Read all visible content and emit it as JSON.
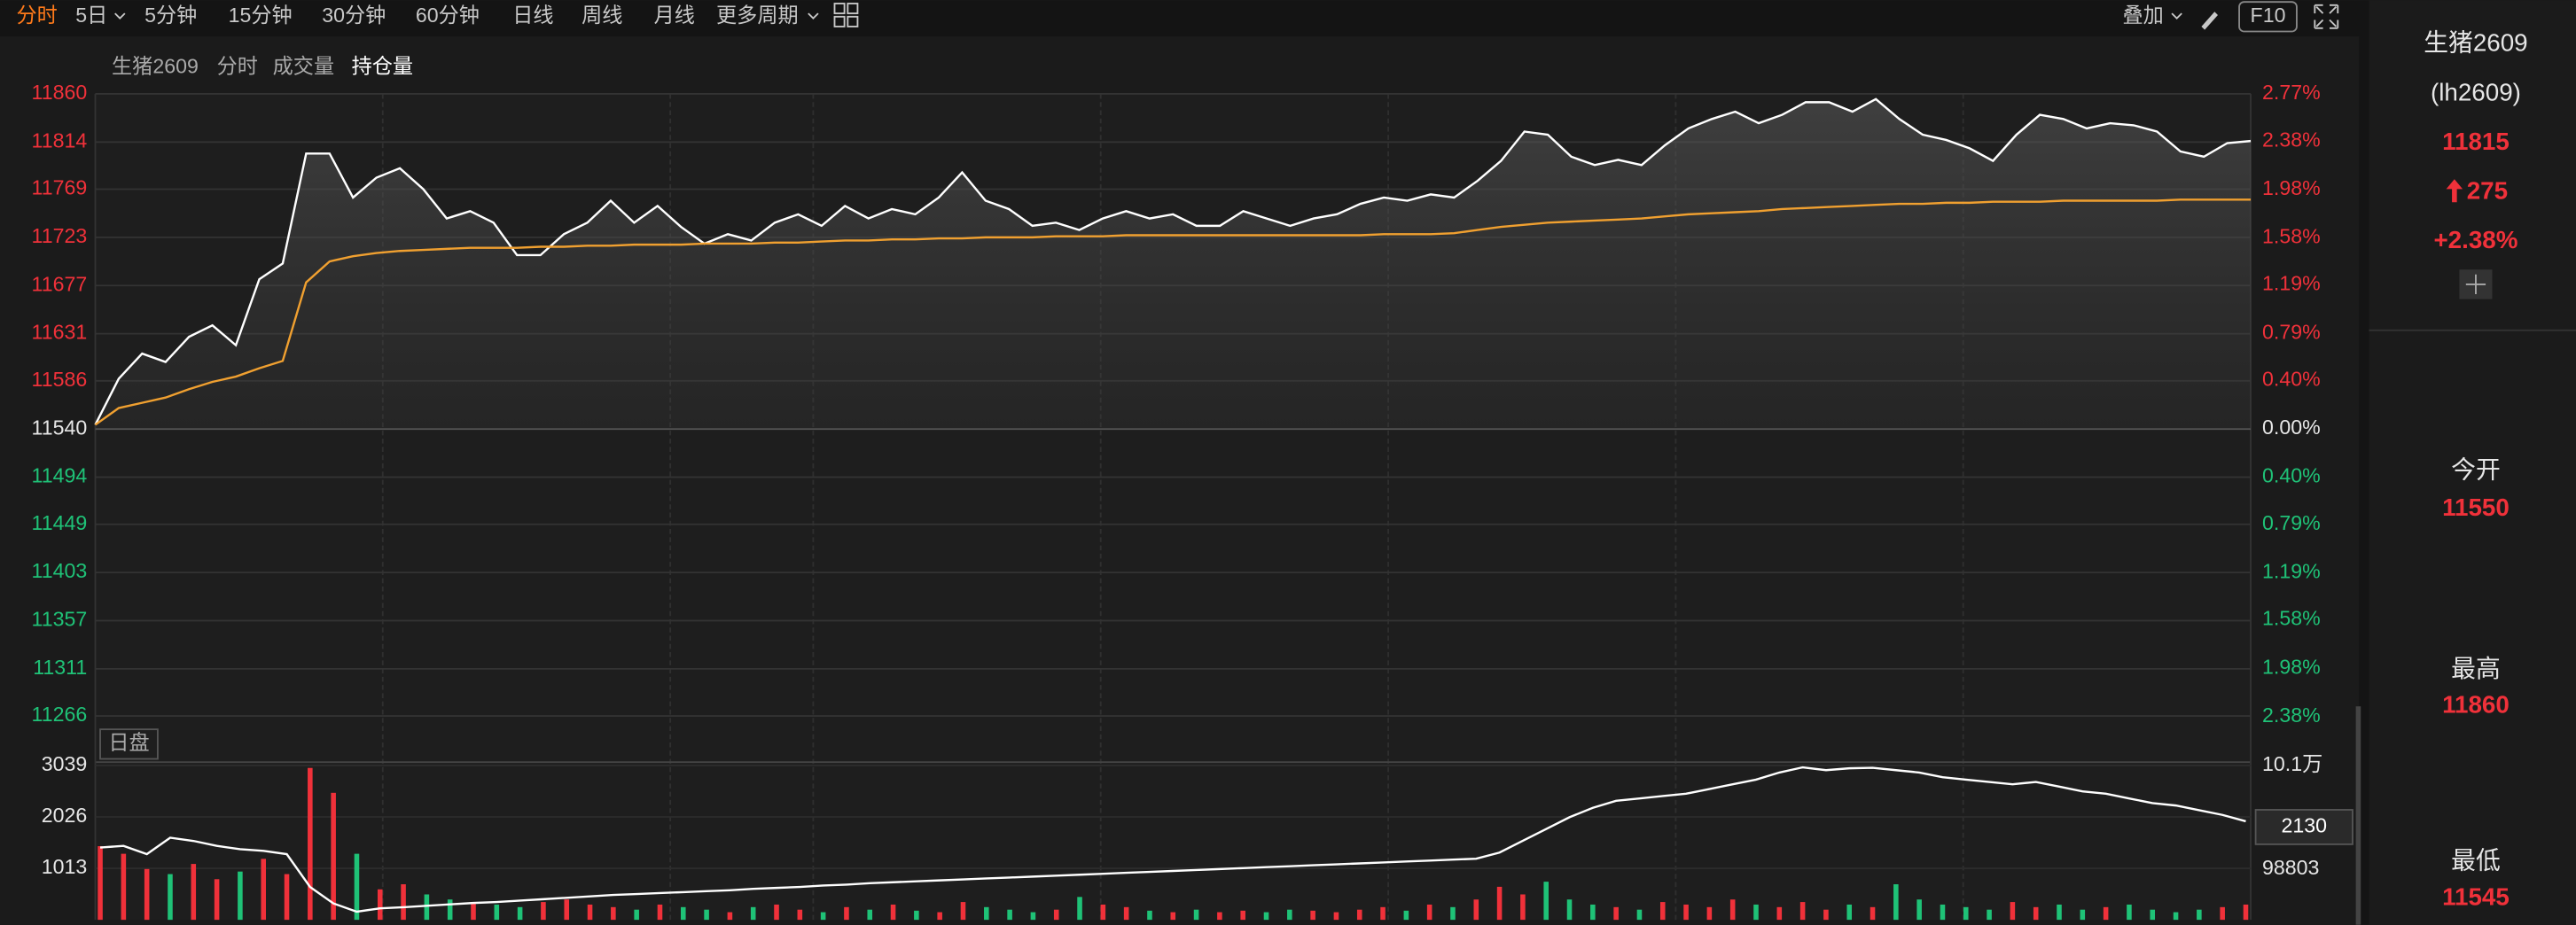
{
  "toolbar": {
    "periods": [
      "分时",
      "5日",
      "5分钟",
      "15分钟",
      "30分钟",
      "60分钟",
      "日线",
      "周线",
      "月线",
      "更多周期"
    ],
    "overlay": "叠加",
    "f10": "F10"
  },
  "tabs": [
    "生猪2609",
    "分时",
    "成交量",
    "持仓量"
  ],
  "session": "日盘",
  "cursor_label": "2130",
  "sidebar": {
    "name": "生猪2609",
    "code": "(lh2609)",
    "price": "11815",
    "change": "275",
    "pct": "+2.38%",
    "open_label": "今开",
    "open": "11550",
    "high_label": "最高",
    "high": "11860",
    "low_label": "最低",
    "low": "11545"
  },
  "chart_data": [
    {
      "type": "line",
      "ylim": [
        11225,
        11860
      ],
      "yticks": [
        11860,
        11814,
        11769,
        11723,
        11677,
        11631,
        11586,
        11540,
        11494,
        11449,
        11403,
        11357,
        11311,
        11266
      ],
      "y2lim": [
        -2.73,
        2.77
      ],
      "y2ticks": [
        {
          "value": 2.77,
          "label": "2.77%"
        },
        {
          "value": 2.38,
          "label": "2.38%"
        },
        {
          "value": 1.98,
          "label": "1.98%"
        },
        {
          "value": 1.58,
          "label": "1.58%"
        },
        {
          "value": 1.19,
          "label": "1.19%"
        },
        {
          "value": 0.79,
          "label": "0.79%"
        },
        {
          "value": 0.4,
          "label": "0.40%"
        },
        {
          "value": 0,
          "label": "0.00%"
        },
        {
          "value": -0.4,
          "label": "0.40%"
        },
        {
          "value": -0.79,
          "label": "0.79%"
        },
        {
          "value": -1.19,
          "label": "1.19%"
        },
        {
          "value": -1.58,
          "label": "1.58%"
        },
        {
          "value": -1.98,
          "label": "1.98%"
        },
        {
          "value": -2.38,
          "label": "2.38%"
        }
      ],
      "up_color": "#f0313a",
      "down_color": "#1fc277",
      "flat_color": "#e6e6e6",
      "series": [
        {
          "color": "#ffffff",
          "values": [
            11544,
            11588,
            11612,
            11604,
            11628,
            11639,
            11620,
            11683,
            11698,
            11803,
            11803,
            11761,
            11780,
            11789,
            11769,
            11741,
            11748,
            11737,
            11706,
            11706,
            11726,
            11737,
            11758,
            11737,
            11753,
            11733,
            11717,
            11726,
            11720,
            11737,
            11745,
            11734,
            11753,
            11741,
            11750,
            11745,
            11761,
            11785,
            11758,
            11750,
            11734,
            11737,
            11730,
            11741,
            11748,
            11741,
            11745,
            11734,
            11734,
            11748,
            11741,
            11734,
            11741,
            11745,
            11755,
            11761,
            11758,
            11764,
            11761,
            11777,
            11796,
            11824,
            11821,
            11800,
            11792,
            11797,
            11792,
            11811,
            11827,
            11836,
            11843,
            11832,
            11840,
            11852,
            11852,
            11843,
            11855,
            11836,
            11821,
            11816,
            11808,
            11796,
            11821,
            11840,
            11836,
            11827,
            11832,
            11830,
            11824,
            11805,
            11800,
            11813,
            11815
          ]
        },
        {
          "color": "#f0a030",
          "values": [
            11544,
            11560,
            11565,
            11570,
            11578,
            11585,
            11590,
            11598,
            11605,
            11680,
            11700,
            11705,
            11708,
            11710,
            11711,
            11712,
            11713,
            11713,
            11713,
            11714,
            11714,
            11715,
            11715,
            11716,
            11716,
            11716,
            11717,
            11717,
            11717,
            11718,
            11718,
            11719,
            11720,
            11720,
            11721,
            11721,
            11722,
            11722,
            11723,
            11723,
            11723,
            11724,
            11724,
            11724,
            11725,
            11725,
            11725,
            11725,
            11725,
            11725,
            11725,
            11725,
            11725,
            11725,
            11725,
            11726,
            11726,
            11726,
            11727,
            11730,
            11733,
            11735,
            11737,
            11738,
            11739,
            11740,
            11741,
            11743,
            11745,
            11746,
            11747,
            11748,
            11750,
            11751,
            11752,
            11753,
            11754,
            11755,
            11755,
            11756,
            11756,
            11757,
            11757,
            11757,
            11758,
            11758,
            11758,
            11758,
            11758,
            11759,
            11759,
            11759,
            11759
          ]
        }
      ]
    },
    {
      "type": "combo",
      "ylim": [
        0,
        3071
      ],
      "yticks": [
        3039,
        2026,
        1013
      ],
      "y2lim": [
        97722,
        101035
      ],
      "y2ticks": [
        {
          "value": 101000,
          "label": "10.1万"
        },
        98803
      ],
      "up_color": "#f0313a",
      "down_color": "#1fc277",
      "series": [
        {
          "type": "bar",
          "values": [
            1450,
            1300,
            1000,
            900,
            1100,
            800,
            950,
            1200,
            900,
            2990,
            2500,
            1300,
            600,
            700,
            500,
            400,
            350,
            300,
            250,
            350,
            400,
            300,
            250,
            200,
            300,
            250,
            200,
            150,
            250,
            300,
            200,
            150,
            250,
            200,
            300,
            180,
            150,
            350,
            250,
            200,
            150,
            200,
            450,
            300,
            250,
            180,
            150,
            200,
            150,
            180,
            150,
            200,
            180,
            150,
            200,
            250,
            180,
            300,
            250,
            400,
            650,
            500,
            750,
            400,
            300,
            250,
            200,
            350,
            300,
            250,
            400,
            300,
            250,
            350,
            200,
            300,
            250,
            700,
            400,
            300,
            250,
            200,
            350,
            250,
            300,
            200,
            250,
            300,
            200,
            150,
            200,
            250,
            300
          ]
        },
        {
          "color": "#ffffff",
          "axis": "y2",
          "values": [
            99257,
            99292,
            99117,
            99466,
            99397,
            99292,
            99222,
            99187,
            99117,
            98419,
            98070,
            97895,
            97965,
            97990,
            98020,
            98050,
            98080,
            98100,
            98130,
            98160,
            98190,
            98220,
            98250,
            98270,
            98290,
            98310,
            98330,
            98350,
            98380,
            98400,
            98420,
            98450,
            98470,
            98500,
            98520,
            98540,
            98560,
            98580,
            98600,
            98620,
            98640,
            98660,
            98680,
            98700,
            98720,
            98740,
            98760,
            98780,
            98800,
            98820,
            98840,
            98860,
            98880,
            98900,
            98920,
            98940,
            98960,
            98980,
            99000,
            99020,
            99150,
            99400,
            99650,
            99900,
            100100,
            100250,
            100300,
            100350,
            100400,
            100500,
            100600,
            100700,
            100850,
            100960,
            100900,
            100940,
            100950,
            100900,
            100850,
            100750,
            100700,
            100650,
            100600,
            100650,
            100550,
            100450,
            100400,
            100300,
            100200,
            100150,
            100050,
            99950,
            99815
          ]
        }
      ]
    }
  ]
}
